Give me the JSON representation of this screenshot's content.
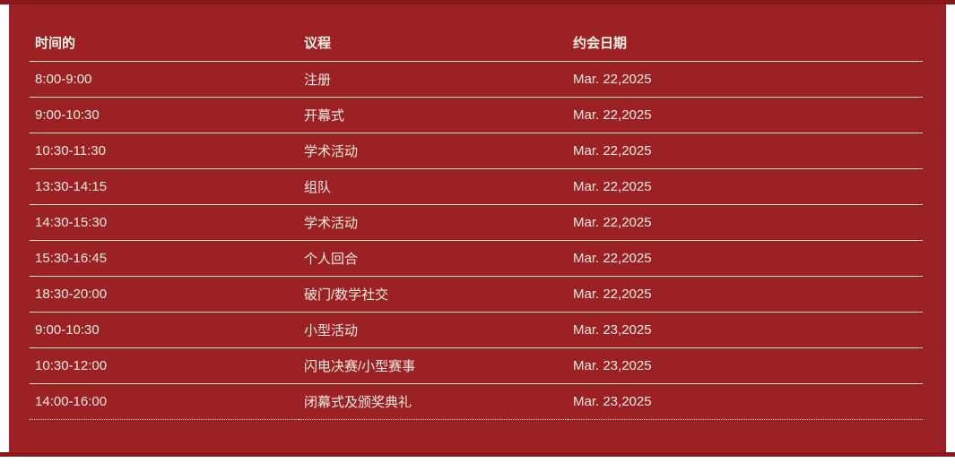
{
  "colors": {
    "panel_background": "#9b2125",
    "edge_strip": "#8a191d",
    "row_border": "#ecdbd1",
    "text": "#f6eae2"
  },
  "table": {
    "columns": [
      "时间的",
      "议程",
      "约会日期"
    ],
    "rows": [
      {
        "time": "8:00-9:00",
        "agenda": "注册",
        "date": "Mar. 22,2025"
      },
      {
        "time": "9:00-10:30",
        "agenda": "开幕式",
        "date": "Mar. 22,2025"
      },
      {
        "time": "10:30-11:30",
        "agenda": "学术活动",
        "date": "Mar. 22,2025"
      },
      {
        "time": "13:30-14:15",
        "agenda": "组队",
        "date": "Mar. 22,2025"
      },
      {
        "time": "14:30-15:30",
        "agenda": "学术活动",
        "date": "Mar. 22,2025"
      },
      {
        "time": "15:30-16:45",
        "agenda": "个人回合",
        "date": "Mar. 22,2025"
      },
      {
        "time": "18:30-20:00",
        "agenda": "破门/数学社交",
        "date": "Mar. 22,2025"
      },
      {
        "time": "9:00-10:30",
        "agenda": "小型活动",
        "date": "Mar. 23,2025"
      },
      {
        "time": "10:30-12:00",
        "agenda": "闪电决赛/小型赛事",
        "date": "Mar. 23,2025"
      },
      {
        "time": "14:00-16:00",
        "agenda": "闭幕式及颁奖典礼",
        "date": "Mar. 23,2025"
      }
    ]
  }
}
